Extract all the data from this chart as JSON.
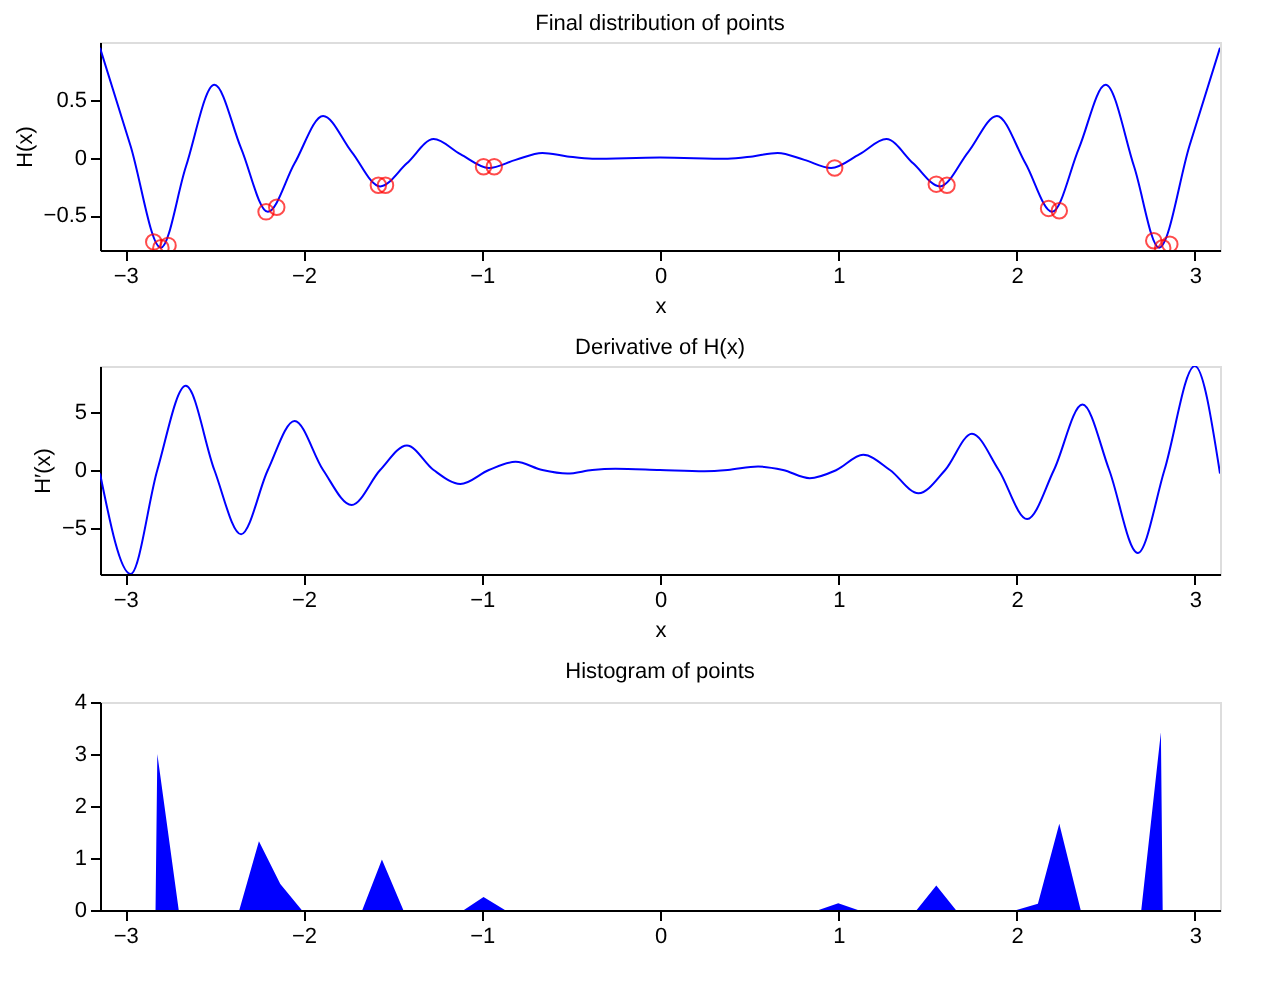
{
  "chart_data": [
    {
      "type": "line",
      "title": "Final distribution of points",
      "xlabel": "x",
      "ylabel": "H(x)",
      "xlim": [
        -3.1416,
        3.1416
      ],
      "ylim": [
        -0.8,
        1.0
      ],
      "xticks": [
        -3,
        -2,
        -1,
        0,
        1,
        2,
        3
      ],
      "yticks": [
        -0.5,
        0,
        0.5
      ],
      "grid": false,
      "series": [
        {
          "color": "#0000ff",
          "x": [
            -3.1416,
            -2.97,
            -2.8,
            -2.66,
            -2.5,
            -2.35,
            -2.2,
            -2.05,
            -1.89,
            -1.73,
            -1.57,
            -1.42,
            -1.27,
            -1.12,
            -0.96,
            -0.81,
            -0.66,
            -0.52,
            -0.38,
            0,
            0.38,
            0.52,
            0.66,
            0.81,
            0.96,
            1.12,
            1.27,
            1.42,
            1.57,
            1.73,
            1.89,
            2.05,
            2.2,
            2.35,
            2.5,
            2.66,
            2.8,
            2.97,
            3.1416
          ],
          "values": [
            0.95,
            0.1,
            -0.78,
            -0.08,
            0.63,
            0.08,
            -0.47,
            -0.05,
            0.36,
            0.05,
            -0.25,
            -0.05,
            0.16,
            0.03,
            -0.09,
            -0.02,
            0.04,
            0.01,
            -0.01,
            0,
            -0.01,
            0.01,
            0.04,
            -0.02,
            -0.09,
            0.03,
            0.16,
            -0.05,
            -0.25,
            0.05,
            0.36,
            -0.05,
            -0.47,
            0.08,
            0.63,
            -0.08,
            -0.78,
            0.1,
            0.95
          ]
        },
        {
          "type": "scatter",
          "color": "#ff0000",
          "marker": "circle",
          "x": [
            -2.84,
            -2.8,
            -2.76,
            -2.21,
            -2.15,
            -1.58,
            -1.54,
            -0.99,
            -0.93,
            0.98,
            1.55,
            1.61,
            2.18,
            2.24,
            2.77,
            2.82,
            2.86
          ],
          "values": [
            -0.73,
            -0.78,
            -0.76,
            -0.47,
            -0.43,
            -0.24,
            -0.24,
            -0.08,
            -0.08,
            -0.09,
            -0.23,
            -0.24,
            -0.44,
            -0.46,
            -0.72,
            -0.78,
            -0.75
          ]
        }
      ]
    },
    {
      "type": "line",
      "title": "Derivative of H(x)",
      "xlabel": "x",
      "ylabel": "H′(x)",
      "xlim": [
        -3.1416,
        3.1416
      ],
      "ylim": [
        -8.9,
        8.9
      ],
      "xticks": [
        -3,
        -2,
        -1,
        0,
        1,
        2,
        3
      ],
      "yticks": [
        -5,
        0,
        5
      ],
      "grid": false,
      "series": [
        {
          "color": "#0000ff",
          "x": [
            -3.1416,
            -2.97,
            -2.82,
            -2.66,
            -2.5,
            -2.35,
            -2.2,
            -2.05,
            -1.89,
            -1.73,
            -1.57,
            -1.42,
            -1.27,
            -1.12,
            -0.96,
            -0.81,
            -0.66,
            -0.52,
            -0.38,
            -0.25,
            0,
            0.25,
            0.38,
            0.55,
            0.69,
            0.84,
            0.99,
            1.14,
            1.29,
            1.45,
            1.6,
            1.75,
            1.9,
            2.06,
            2.21,
            2.37,
            2.52,
            2.68,
            2.83,
            3.0,
            3.1416
          ],
          "values": [
            -0.3,
            -8.9,
            0,
            7.2,
            0,
            -5.5,
            0,
            4.2,
            0,
            -3.0,
            0,
            2.1,
            0,
            -1.2,
            0,
            0.7,
            0,
            -0.3,
            0,
            0.1,
            0,
            -0.1,
            0,
            0.3,
            0,
            -0.7,
            0,
            1.3,
            0,
            -2.0,
            0,
            3.1,
            0,
            -4.2,
            0,
            5.6,
            0,
            -7.1,
            0,
            8.9,
            -0.3
          ]
        }
      ]
    },
    {
      "type": "area",
      "title": "Histogram of points",
      "xlim": [
        -3.1416,
        3.1416
      ],
      "ylim": [
        0,
        4
      ],
      "xticks": [
        -3,
        -2,
        -1,
        0,
        1,
        2,
        3
      ],
      "yticks": [
        0,
        1,
        2,
        3,
        4
      ],
      "grid": false,
      "series": [
        {
          "color": "#0000ff",
          "x": [
            -3.1416,
            -2.83,
            -2.82,
            -2.7,
            -2.36,
            -2.25,
            -2.13,
            -2.01,
            -1.67,
            -1.56,
            -1.44,
            -1.1,
            -0.99,
            -0.87,
            0.89,
            1.0,
            1.11,
            1.44,
            1.55,
            1.66,
            2.0,
            2.12,
            2.24,
            2.36,
            2.7,
            2.81,
            2.82,
            3.1416
          ],
          "values": [
            0,
            0,
            3.0,
            0,
            0,
            1.32,
            0.5,
            0,
            0,
            0.97,
            0,
            0,
            0.25,
            0,
            0,
            0.13,
            0,
            0,
            0.47,
            0,
            0,
            0.12,
            1.66,
            0,
            0,
            3.42,
            0,
            0
          ]
        }
      ]
    }
  ]
}
